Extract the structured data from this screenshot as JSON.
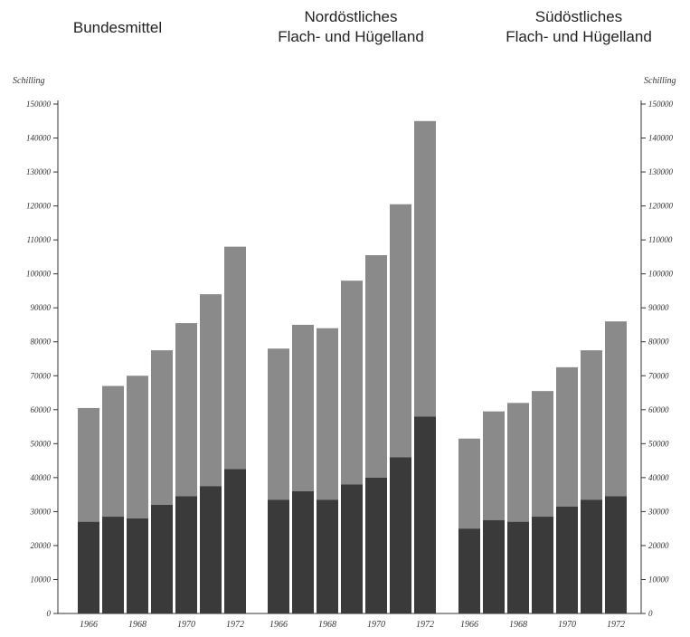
{
  "chart_data": {
    "type": "bar",
    "stacked": true,
    "grid": false,
    "legend": "none",
    "ylabel": "Schilling",
    "ylim": [
      0,
      150000
    ],
    "yticks": [
      0,
      10000,
      20000,
      30000,
      40000,
      50000,
      60000,
      70000,
      80000,
      90000,
      100000,
      110000,
      120000,
      130000,
      140000,
      150000
    ],
    "colors": {
      "lower": "#3a3a3a",
      "upper": "#8a8a8a",
      "axis": "#333333"
    },
    "groups": [
      {
        "title_lines": [
          "Bundesmittel"
        ],
        "categories": [
          "1966",
          "1967",
          "1968",
          "1969",
          "1970",
          "1971",
          "1972"
        ],
        "lower": [
          27000,
          28500,
          28000,
          32000,
          34500,
          37500,
          42500
        ],
        "total": [
          60500,
          67000,
          70000,
          77500,
          85500,
          94000,
          108000
        ]
      },
      {
        "title_lines": [
          "Nordöstliches",
          "Flach- und Hügelland"
        ],
        "categories": [
          "1966",
          "1967",
          "1968",
          "1969",
          "1970",
          "1971",
          "1972"
        ],
        "lower": [
          33500,
          36000,
          33500,
          38000,
          40000,
          46000,
          58000
        ],
        "total": [
          78000,
          85000,
          84000,
          98000,
          105500,
          120500,
          145000
        ]
      },
      {
        "title_lines": [
          "Südöstliches",
          "Flach- und Hügelland"
        ],
        "categories": [
          "1966",
          "1967",
          "1968",
          "1969",
          "1970",
          "1971",
          "1972"
        ],
        "lower": [
          25000,
          27500,
          27000,
          28500,
          31500,
          33500,
          34500
        ],
        "total": [
          51500,
          59500,
          62000,
          65500,
          72500,
          77500,
          86000
        ]
      }
    ],
    "x_tick_labels": [
      "1966",
      "1968",
      "1970",
      "1972"
    ]
  }
}
